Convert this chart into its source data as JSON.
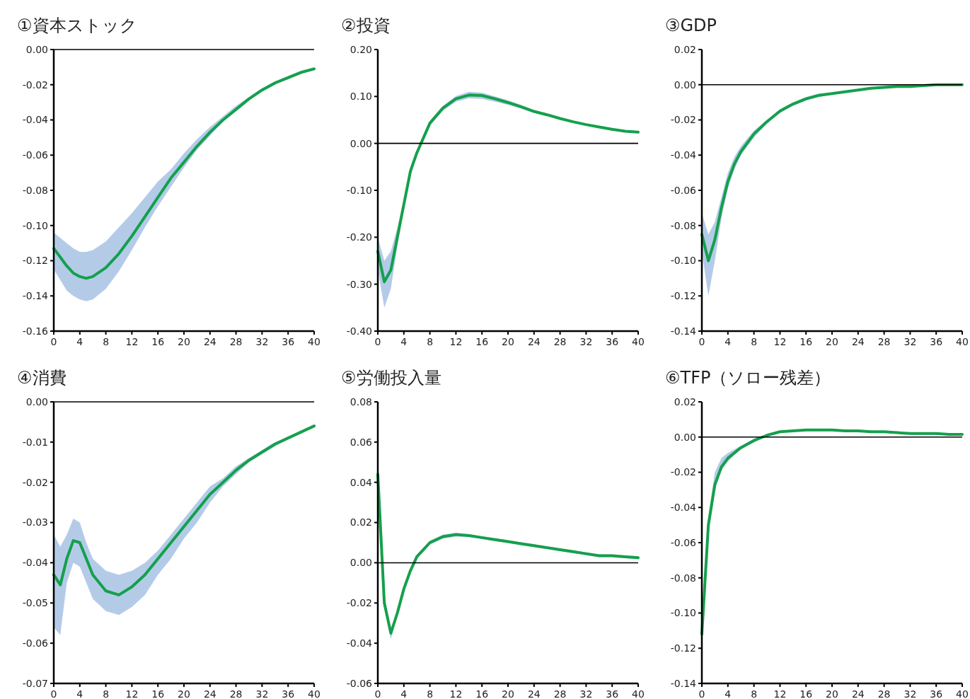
{
  "chart_data": [
    {
      "type": "line",
      "title": "①資本ストック",
      "x": [
        0,
        1,
        2,
        3,
        4,
        5,
        6,
        8,
        10,
        12,
        14,
        16,
        18,
        20,
        22,
        24,
        26,
        28,
        30,
        32,
        34,
        36,
        38,
        40
      ],
      "xlim": [
        0,
        40
      ],
      "xticks": [
        0,
        4,
        8,
        12,
        16,
        20,
        24,
        28,
        32,
        36,
        40
      ],
      "ylim": [
        -0.16,
        0
      ],
      "yticks": [
        {
          "value": 0,
          "label": "0.00"
        },
        {
          "value": -0.02,
          "label": "-0.02"
        },
        {
          "value": -0.04,
          "label": "-0.04"
        },
        {
          "value": -0.06,
          "label": "-0.06"
        },
        {
          "value": -0.08,
          "label": "-0.08"
        },
        {
          "value": -0.1,
          "label": "-0.10"
        },
        {
          "value": -0.12,
          "label": "-0.12"
        },
        {
          "value": -0.14,
          "label": "-0.14"
        },
        {
          "value": -0.16,
          "label": "-0.16"
        }
      ],
      "ref_lines": [
        {
          "axis": "y",
          "value": 0
        }
      ],
      "series": [
        {
          "color": "#14a04c",
          "values": [
            -0.113,
            -0.118,
            -0.123,
            -0.127,
            -0.129,
            -0.13,
            -0.129,
            -0.124,
            -0.116,
            -0.106,
            -0.095,
            -0.084,
            -0.073,
            -0.064,
            -0.055,
            -0.047,
            -0.04,
            -0.034,
            -0.028,
            -0.023,
            -0.019,
            -0.016,
            -0.013,
            -0.011
          ],
          "lower": [
            -0.125,
            -0.131,
            -0.137,
            -0.14,
            -0.142,
            -0.143,
            -0.142,
            -0.136,
            -0.126,
            -0.114,
            -0.101,
            -0.089,
            -0.078,
            -0.067,
            -0.057,
            -0.049,
            -0.041,
            -0.035,
            -0.029,
            -0.024,
            -0.02,
            -0.016,
            -0.013,
            -0.011
          ],
          "upper": [
            -0.104,
            -0.107,
            -0.11,
            -0.113,
            -0.115,
            -0.115,
            -0.114,
            -0.109,
            -0.101,
            -0.093,
            -0.084,
            -0.075,
            -0.068,
            -0.059,
            -0.051,
            -0.044,
            -0.038,
            -0.032,
            -0.027,
            -0.022,
            -0.018,
            -0.015,
            -0.012,
            -0.01
          ]
        }
      ]
    },
    {
      "type": "line",
      "title": "②投資",
      "x": [
        0,
        1,
        2,
        3,
        4,
        5,
        6,
        8,
        10,
        12,
        14,
        16,
        18,
        20,
        22,
        24,
        26,
        28,
        30,
        32,
        34,
        36,
        38,
        40
      ],
      "xlim": [
        0,
        40
      ],
      "xticks": [
        0,
        4,
        8,
        12,
        16,
        20,
        24,
        28,
        32,
        36,
        40
      ],
      "ylim": [
        -0.4,
        0.2
      ],
      "yticks": [
        {
          "value": 0.2,
          "label": "0.20"
        },
        {
          "value": 0.1,
          "label": "0.10"
        },
        {
          "value": 0,
          "label": "0.00"
        },
        {
          "value": -0.1,
          "label": "-0.10"
        },
        {
          "value": -0.2,
          "label": "-0.20"
        },
        {
          "value": -0.3,
          "label": "-0.30"
        },
        {
          "value": -0.4,
          "label": "-0.40"
        }
      ],
      "ref_lines": [
        {
          "axis": "y",
          "value": 0
        }
      ],
      "series": [
        {
          "color": "#14a04c",
          "values": [
            -0.23,
            -0.295,
            -0.27,
            -0.2,
            -0.13,
            -0.06,
            -0.02,
            0.043,
            0.075,
            0.095,
            0.103,
            0.102,
            0.095,
            0.087,
            0.078,
            0.068,
            0.061,
            0.053,
            0.046,
            0.04,
            0.035,
            0.03,
            0.026,
            0.024
          ],
          "lower": [
            -0.27,
            -0.35,
            -0.31,
            -0.22,
            -0.14,
            -0.07,
            -0.025,
            0.038,
            0.07,
            0.089,
            0.096,
            0.095,
            0.089,
            0.082,
            0.074,
            0.065,
            0.058,
            0.051,
            0.044,
            0.038,
            0.033,
            0.029,
            0.025,
            0.023
          ],
          "upper": [
            -0.2,
            -0.25,
            -0.23,
            -0.18,
            -0.12,
            -0.05,
            -0.015,
            0.048,
            0.08,
            0.101,
            0.11,
            0.108,
            0.1,
            0.092,
            0.082,
            0.071,
            0.064,
            0.055,
            0.048,
            0.042,
            0.037,
            0.031,
            0.027,
            0.025
          ]
        }
      ]
    },
    {
      "type": "line",
      "title": "③GDP",
      "x": [
        0,
        1,
        2,
        3,
        4,
        5,
        6,
        8,
        10,
        12,
        14,
        16,
        18,
        20,
        22,
        24,
        26,
        28,
        30,
        32,
        34,
        36,
        38,
        40
      ],
      "xlim": [
        0,
        40
      ],
      "xticks": [
        0,
        4,
        8,
        12,
        16,
        20,
        24,
        28,
        32,
        36,
        40
      ],
      "ylim": [
        -0.14,
        0.02
      ],
      "yticks": [
        {
          "value": 0.02,
          "label": "0.02"
        },
        {
          "value": 0,
          "label": "0.00"
        },
        {
          "value": -0.02,
          "label": "-0.02"
        },
        {
          "value": -0.04,
          "label": "-0.04"
        },
        {
          "value": -0.06,
          "label": "-0.06"
        },
        {
          "value": -0.08,
          "label": "-0.08"
        },
        {
          "value": -0.1,
          "label": "-0.10"
        },
        {
          "value": -0.12,
          "label": "-0.12"
        },
        {
          "value": -0.14,
          "label": "-0.14"
        }
      ],
      "ref_lines": [
        {
          "axis": "y",
          "value": 0
        }
      ],
      "series": [
        {
          "color": "#14a04c",
          "values": [
            -0.085,
            -0.1,
            -0.088,
            -0.07,
            -0.055,
            -0.045,
            -0.038,
            -0.028,
            -0.021,
            -0.015,
            -0.011,
            -0.008,
            -0.006,
            -0.005,
            -0.004,
            -0.003,
            -0.002,
            -0.0015,
            -0.001,
            -0.001,
            -0.0005,
            0,
            0,
            0
          ],
          "lower": [
            -0.095,
            -0.12,
            -0.1,
            -0.076,
            -0.059,
            -0.048,
            -0.04,
            -0.03,
            -0.022,
            -0.016,
            -0.012,
            -0.009,
            -0.007,
            -0.0055,
            -0.0045,
            -0.0035,
            -0.0025,
            -0.002,
            -0.0015,
            -0.0012,
            -0.0008,
            -0.0004,
            -0.0003,
            -0.0002
          ],
          "upper": [
            -0.073,
            -0.085,
            -0.078,
            -0.064,
            -0.05,
            -0.041,
            -0.035,
            -0.026,
            -0.02,
            -0.014,
            -0.01,
            -0.007,
            -0.005,
            -0.0045,
            -0.0035,
            -0.0025,
            -0.0015,
            -0.001,
            -0.0005,
            -0.0008,
            -0.0002,
            0.0004,
            0.0003,
            0.0002
          ]
        }
      ]
    },
    {
      "type": "line",
      "title": "④消費",
      "x": [
        0,
        1,
        2,
        3,
        4,
        5,
        6,
        8,
        10,
        12,
        14,
        16,
        18,
        20,
        22,
        24,
        26,
        28,
        30,
        32,
        34,
        36,
        38,
        40
      ],
      "xlim": [
        0,
        40
      ],
      "xticks": [
        0,
        4,
        8,
        12,
        16,
        20,
        24,
        28,
        32,
        36,
        40
      ],
      "ylim": [
        -0.07,
        0
      ],
      "yticks": [
        {
          "value": 0,
          "label": "0.00"
        },
        {
          "value": -0.01,
          "label": "-0.01"
        },
        {
          "value": -0.02,
          "label": "-0.02"
        },
        {
          "value": -0.03,
          "label": "-0.03"
        },
        {
          "value": -0.04,
          "label": "-0.04"
        },
        {
          "value": -0.05,
          "label": "-0.05"
        },
        {
          "value": -0.06,
          "label": "-0.06"
        },
        {
          "value": -0.07,
          "label": "-0.07"
        }
      ],
      "ref_lines": [
        {
          "axis": "y",
          "value": 0
        }
      ],
      "series": [
        {
          "color": "#14a04c",
          "values": [
            -0.043,
            -0.0455,
            -0.039,
            -0.0345,
            -0.035,
            -0.039,
            -0.043,
            -0.047,
            -0.048,
            -0.046,
            -0.043,
            -0.039,
            -0.035,
            -0.031,
            -0.027,
            -0.023,
            -0.02,
            -0.017,
            -0.0145,
            -0.0125,
            -0.0105,
            -0.009,
            -0.0075,
            -0.006
          ],
          "lower": [
            -0.056,
            -0.058,
            -0.045,
            -0.04,
            -0.041,
            -0.045,
            -0.049,
            -0.052,
            -0.053,
            -0.051,
            -0.048,
            -0.043,
            -0.039,
            -0.034,
            -0.03,
            -0.025,
            -0.021,
            -0.018,
            -0.015,
            -0.013,
            -0.011,
            -0.0093,
            -0.0078,
            -0.0062
          ],
          "upper": [
            -0.033,
            -0.036,
            -0.033,
            -0.029,
            -0.03,
            -0.035,
            -0.039,
            -0.042,
            -0.043,
            -0.042,
            -0.04,
            -0.037,
            -0.033,
            -0.029,
            -0.025,
            -0.021,
            -0.019,
            -0.016,
            -0.014,
            -0.012,
            -0.01,
            -0.0087,
            -0.0072,
            -0.0058
          ]
        }
      ]
    },
    {
      "type": "line",
      "title": "⑤労働投入量",
      "x": [
        0,
        1,
        2,
        3,
        4,
        5,
        6,
        8,
        10,
        12,
        14,
        16,
        18,
        20,
        22,
        24,
        26,
        28,
        30,
        32,
        34,
        36,
        38,
        40
      ],
      "xlim": [
        0,
        40
      ],
      "xticks": [
        0,
        4,
        8,
        12,
        16,
        20,
        24,
        28,
        32,
        36,
        40
      ],
      "ylim": [
        -0.06,
        0.08
      ],
      "yticks": [
        {
          "value": 0.08,
          "label": "0.08"
        },
        {
          "value": 0.06,
          "label": "0.06"
        },
        {
          "value": 0.04,
          "label": "0.04"
        },
        {
          "value": 0.02,
          "label": "0.02"
        },
        {
          "value": 0,
          "label": "0.00"
        },
        {
          "value": -0.02,
          "label": "-0.02"
        },
        {
          "value": -0.04,
          "label": "-0.04"
        },
        {
          "value": -0.06,
          "label": "-0.06"
        }
      ],
      "ref_lines": [
        {
          "axis": "y",
          "value": 0
        }
      ],
      "series": [
        {
          "color": "#14a04c",
          "values": [
            0.044,
            -0.02,
            -0.035,
            -0.025,
            -0.013,
            -0.004,
            0.003,
            0.01,
            0.013,
            0.014,
            0.0135,
            0.0125,
            0.0115,
            0.0105,
            0.0095,
            0.0085,
            0.0075,
            0.0065,
            0.0055,
            0.0045,
            0.0035,
            0.0035,
            0.003,
            0.0025
          ],
          "lower": [
            0.043,
            -0.021,
            -0.038,
            -0.026,
            -0.014,
            -0.005,
            0.002,
            0.009,
            0.012,
            0.013,
            0.0128,
            0.0118,
            0.0108,
            0.0098,
            0.0088,
            0.0078,
            0.0068,
            0.0058,
            0.0048,
            0.0038,
            0.0028,
            0.0028,
            0.0023,
            0.0018
          ],
          "upper": [
            0.045,
            -0.019,
            -0.033,
            -0.024,
            -0.012,
            -0.003,
            0.004,
            0.011,
            0.014,
            0.015,
            0.0142,
            0.0132,
            0.0122,
            0.0112,
            0.0102,
            0.0092,
            0.0082,
            0.0072,
            0.0062,
            0.0052,
            0.0042,
            0.0042,
            0.0037,
            0.0032
          ]
        }
      ]
    },
    {
      "type": "line",
      "title": "⑥TFP（ソロー残差）",
      "x": [
        0,
        1,
        2,
        3,
        4,
        5,
        6,
        8,
        10,
        12,
        14,
        16,
        18,
        20,
        22,
        24,
        26,
        28,
        30,
        32,
        34,
        36,
        38,
        40
      ],
      "xlim": [
        0,
        40
      ],
      "xticks": [
        0,
        4,
        8,
        12,
        16,
        20,
        24,
        28,
        32,
        36,
        40
      ],
      "ylim": [
        -0.14,
        0.02
      ],
      "yticks": [
        {
          "value": 0.02,
          "label": "0.02"
        },
        {
          "value": 0,
          "label": "0.00"
        },
        {
          "value": -0.02,
          "label": "-0.02"
        },
        {
          "value": -0.04,
          "label": "-0.04"
        },
        {
          "value": -0.06,
          "label": "-0.06"
        },
        {
          "value": -0.08,
          "label": "-0.08"
        },
        {
          "value": -0.1,
          "label": "-0.10"
        },
        {
          "value": -0.12,
          "label": "-0.12"
        },
        {
          "value": -0.14,
          "label": "-0.14"
        }
      ],
      "ref_lines": [
        {
          "axis": "y",
          "value": 0
        }
      ],
      "series": [
        {
          "color": "#14a04c",
          "values": [
            -0.112,
            -0.05,
            -0.027,
            -0.017,
            -0.012,
            -0.009,
            -0.006,
            -0.002,
            0.001,
            0.003,
            0.0035,
            0.004,
            0.004,
            0.004,
            0.0035,
            0.0035,
            0.003,
            0.003,
            0.0025,
            0.002,
            0.002,
            0.002,
            0.0015,
            0.0015
          ],
          "lower": [
            -0.113,
            -0.055,
            -0.03,
            -0.019,
            -0.014,
            -0.01,
            -0.007,
            -0.003,
            0.0005,
            0.0025,
            0.003,
            0.0035,
            0.0035,
            0.0035,
            0.003,
            0.003,
            0.0025,
            0.0025,
            0.002,
            0.0015,
            0.0015,
            0.0015,
            0.001,
            0.001
          ],
          "upper": [
            -0.111,
            -0.045,
            -0.02,
            -0.012,
            -0.009,
            -0.007,
            -0.005,
            -0.001,
            0.0015,
            0.0035,
            0.004,
            0.0045,
            0.0045,
            0.0045,
            0.004,
            0.004,
            0.0035,
            0.0035,
            0.003,
            0.0025,
            0.0025,
            0.0025,
            0.002,
            0.002
          ]
        }
      ]
    }
  ]
}
